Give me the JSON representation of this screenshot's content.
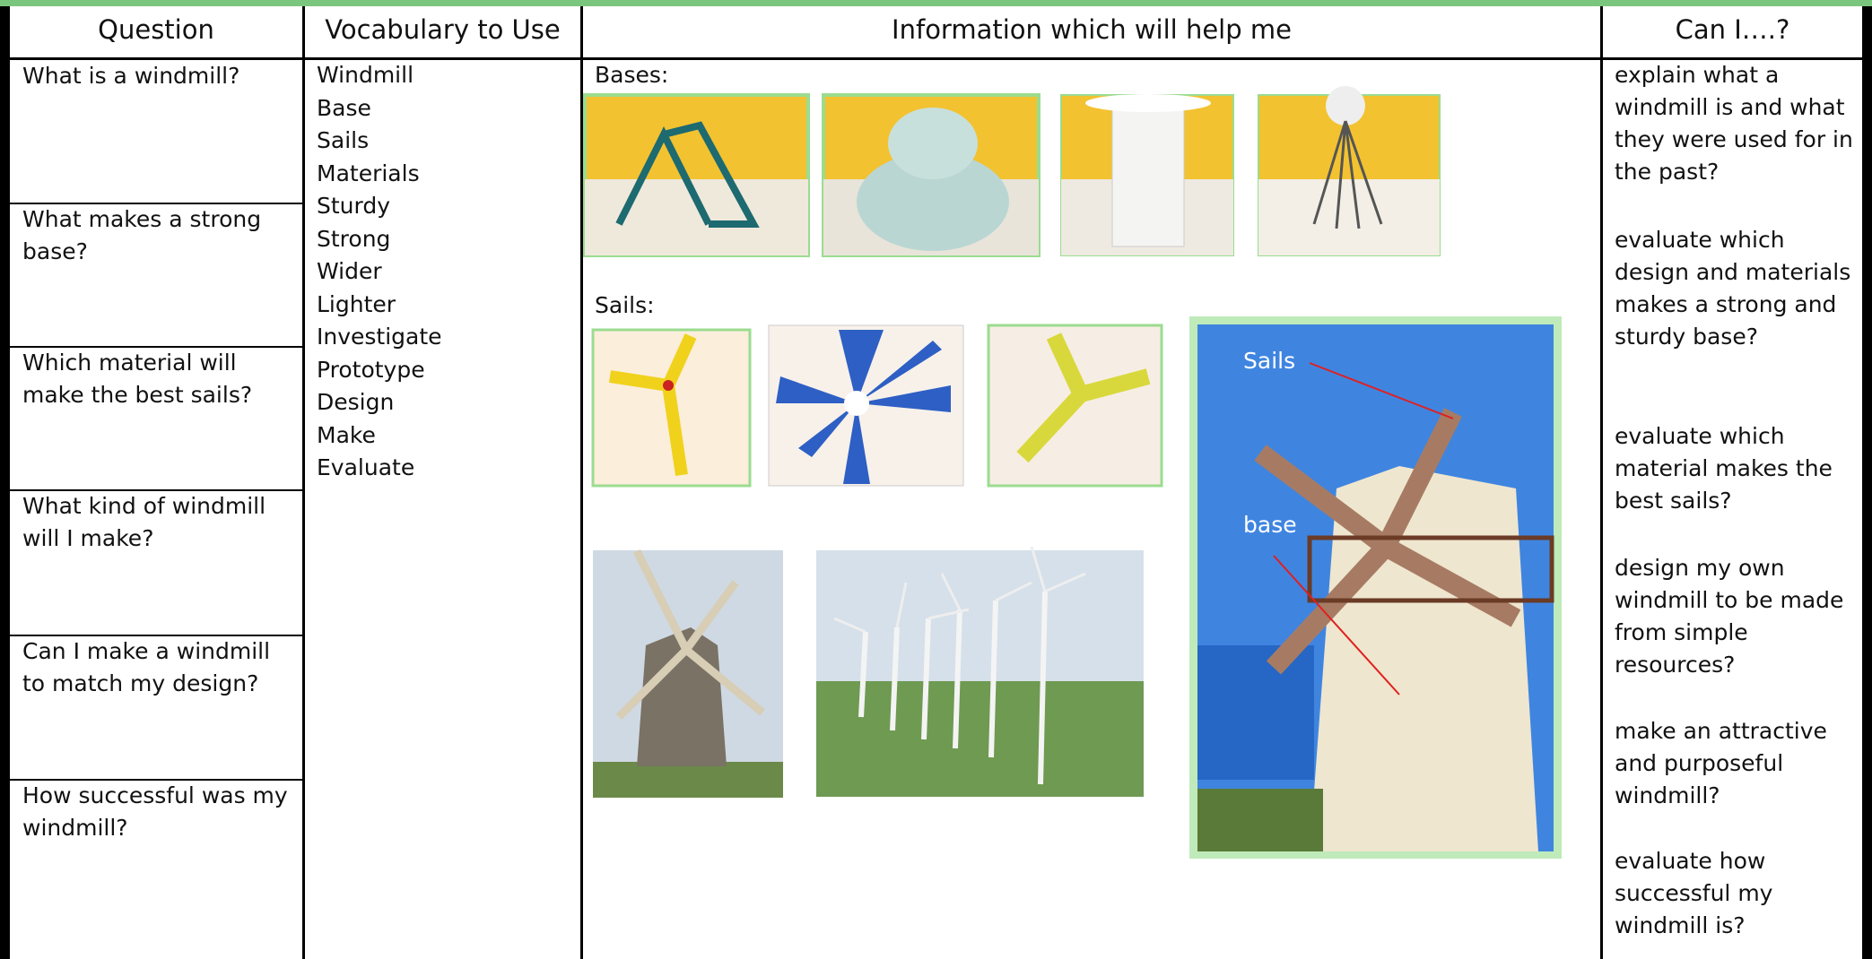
{
  "header": {
    "columns": [
      "Question",
      "Vocabulary to Use",
      "Information which will help me",
      "Can I….?"
    ]
  },
  "questions": [
    "What is a windmill?",
    "What makes a strong base?",
    "Which material will make the best sails?",
    "What kind of windmill will I make?",
    "Can I make a windmill to match my design?",
    "How successful was my windmill?"
  ],
  "vocabulary": [
    "Windmill",
    "Base",
    "Sails",
    "Materials",
    "Sturdy",
    "Strong",
    "Wider",
    "Lighter",
    "Investigate",
    "Prototype",
    "Design",
    "Make",
    "Evaluate"
  ],
  "info": {
    "bases_label": "Bases:",
    "sails_label": "Sails:",
    "annotations": [
      "Sails",
      "base"
    ]
  },
  "can_i": [
    "explain what a windmill is and what they were used for in the past?",
    "evaluate which design and materials makes a strong and sturdy base?",
    "evaluate which material makes the best sails?",
    "design my own windmill to be made from simple resources?",
    "make an attractive and purposeful windmill?",
    "evaluate how successful my windmill is?"
  ]
}
